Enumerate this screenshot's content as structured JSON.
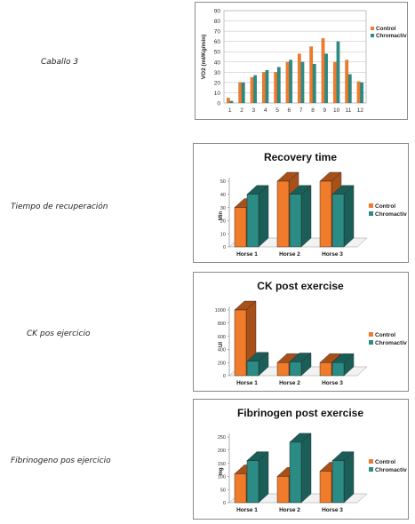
{
  "rows": [
    {
      "label": "Caballo 3"
    },
    {
      "label": "Tiempo de recuperación"
    },
    {
      "label": "CK pos ejercicio"
    },
    {
      "label": "Fibrinogeno pos ejercicio"
    }
  ],
  "colors": {
    "control": "#f07b2a",
    "chromactiv": "#2a8c84",
    "control_dark": "#a8501a",
    "chromactiv_dark": "#1b5e58",
    "grid": "#bdbdbd"
  },
  "chart_data": [
    {
      "type": "bar",
      "title": "",
      "ylabel": "VO2 (ml/Kg/min)",
      "xlabel": "",
      "categories": [
        "1",
        "2",
        "3",
        "4",
        "5",
        "6",
        "7",
        "8",
        "9",
        "10",
        "11",
        "12"
      ],
      "series": [
        {
          "name": "Control",
          "values": [
            5,
            20,
            25,
            30,
            30,
            40,
            48,
            55,
            63,
            40,
            42,
            21
          ]
        },
        {
          "name": "Chromactiv",
          "values": [
            2,
            20,
            27,
            32,
            35,
            42,
            40,
            38,
            48,
            60,
            28,
            20
          ]
        }
      ],
      "ylim": [
        0,
        90
      ],
      "yticks": [
        0,
        10,
        20,
        30,
        40,
        50,
        60,
        70,
        80,
        90
      ],
      "grid": true,
      "legend": "right"
    },
    {
      "type": "bar",
      "title": "Recovery time",
      "ylabel": "Min",
      "xlabel": "",
      "categories": [
        "Horse 1",
        "Horse 2",
        "Horse 3"
      ],
      "series": [
        {
          "name": "Control",
          "values": [
            30,
            50,
            50
          ]
        },
        {
          "name": "Chromactiv",
          "values": [
            40,
            40,
            40
          ]
        }
      ],
      "ylim": [
        0,
        50
      ],
      "yticks": [
        0,
        10,
        20,
        30,
        40,
        50
      ],
      "grid": false,
      "legend": "right"
    },
    {
      "type": "bar",
      "title": "CK post exercise",
      "ylabel": "UI",
      "xlabel": "",
      "categories": [
        "Horse 1",
        "Horse 2",
        "Horse 3"
      ],
      "series": [
        {
          "name": "Control",
          "values": [
            1000,
            200,
            200
          ]
        },
        {
          "name": "Chromactiv",
          "values": [
            220,
            210,
            200
          ]
        }
      ],
      "ylim": [
        0,
        1000
      ],
      "yticks": [
        0,
        200,
        400,
        600,
        800,
        1000
      ],
      "grid": false,
      "legend": "right"
    },
    {
      "type": "bar",
      "title": "Fibrinogen post exercise",
      "ylabel": "mg",
      "xlabel": "",
      "categories": [
        "Horse 1",
        "Horse 2",
        "Horse 3"
      ],
      "series": [
        {
          "name": "Control",
          "values": [
            110,
            100,
            120
          ]
        },
        {
          "name": "Chromactiv",
          "values": [
            160,
            230,
            160
          ]
        }
      ],
      "ylim": [
        0,
        250
      ],
      "yticks": [
        0,
        50,
        100,
        150,
        200,
        250
      ],
      "grid": false,
      "legend": "right"
    }
  ]
}
